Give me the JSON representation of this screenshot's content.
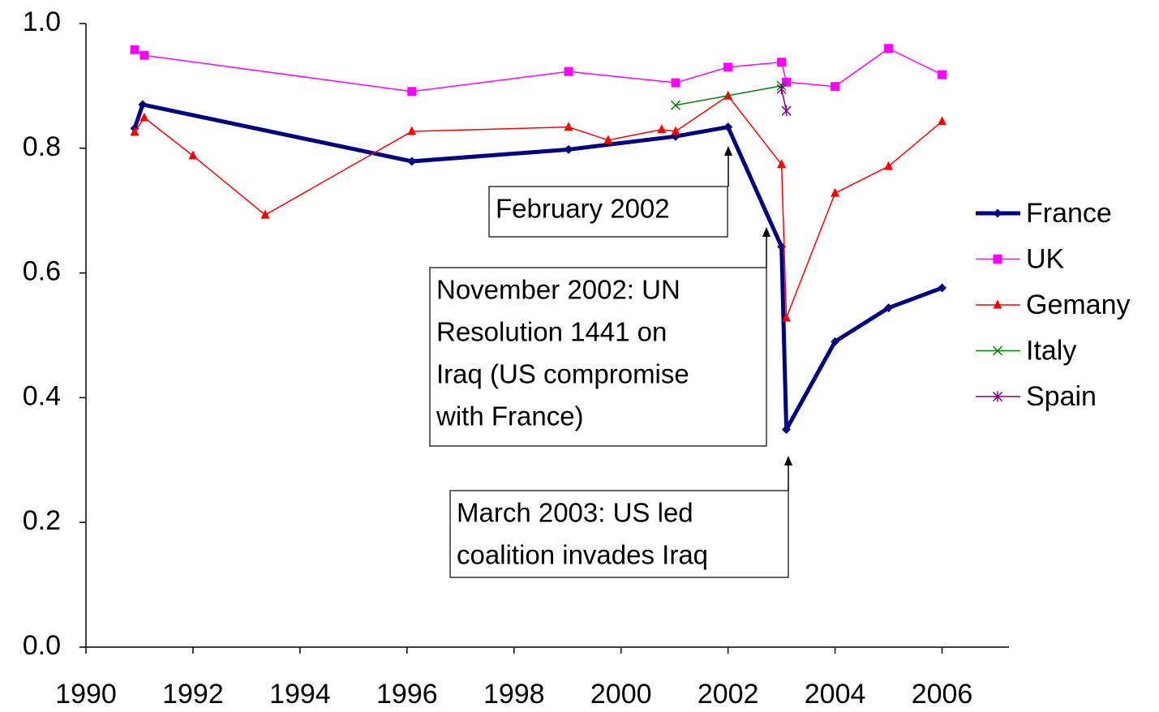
{
  "chart_data": {
    "type": "line",
    "xlim": [
      1990,
      2007.25
    ],
    "xticks": [
      1990,
      1992,
      1994,
      1996,
      1998,
      2000,
      2002,
      2004,
      2006
    ],
    "ylim": [
      0,
      1
    ],
    "yticks": [
      {
        "value": 0,
        "label": "0.0"
      },
      0.2,
      0.4,
      0.6,
      0.8,
      {
        "value": 1,
        "label": "1.0"
      }
    ],
    "series": [
      {
        "name": "France",
        "color": "#000080",
        "marker": "diamond",
        "line_width": 5,
        "x": [
          1990.91,
          1991.06,
          1996.09,
          1999.02,
          2001.02,
          2002.0,
          2003.0,
          2003.09,
          2004.0,
          2005.0,
          2006.0
        ],
        "values": [
          0.832,
          0.87,
          0.779,
          0.798,
          0.819,
          0.834,
          0.642,
          0.349,
          0.49,
          0.544,
          0.576
        ]
      },
      {
        "name": "UK",
        "color": "#ff00ff",
        "marker": "square",
        "line_width": 1.5,
        "x": [
          1990.91,
          1991.09,
          1996.09,
          1999.02,
          2001.02,
          2002.0,
          2003.0,
          2003.09,
          2004.0,
          2005.0,
          2006.0
        ],
        "values": [
          0.958,
          0.949,
          0.891,
          0.923,
          0.905,
          0.93,
          0.938,
          0.906,
          0.899,
          0.96,
          0.918
        ]
      },
      {
        "name": "Gemany",
        "color": "#ff0000",
        "marker": "triangle",
        "line_width": 1.5,
        "x": [
          1990.91,
          1991.09,
          1992.0,
          1993.35,
          1996.09,
          1999.02,
          1999.76,
          2000.76,
          2001.02,
          2002.0,
          2003.0,
          2003.09,
          2004.0,
          2005.0,
          2006.0
        ],
        "values": [
          0.826,
          0.849,
          0.788,
          0.693,
          0.827,
          0.834,
          0.813,
          0.83,
          0.827,
          0.884,
          0.774,
          0.528,
          0.728,
          0.771,
          0.843
        ]
      },
      {
        "name": "Italy",
        "color": "#008000",
        "marker": "x",
        "line_width": 1.5,
        "x": [
          2001.02,
          2003.0
        ],
        "values": [
          0.869,
          0.9
        ]
      },
      {
        "name": "Spain",
        "color": "#800080",
        "marker": "star",
        "line_width": 1.5,
        "x": [
          2003.0,
          2003.09
        ],
        "values": [
          0.895,
          0.86
        ]
      }
    ],
    "annotations": [
      {
        "lines": [
          "February 2002"
        ]
      },
      {
        "lines": [
          "November 2002: UN",
          "Resolution 1441 on",
          "Iraq (US compromise",
          "with France)"
        ]
      },
      {
        "lines": [
          "March 2003: US led",
          "coalition invades Iraq"
        ]
      }
    ]
  }
}
